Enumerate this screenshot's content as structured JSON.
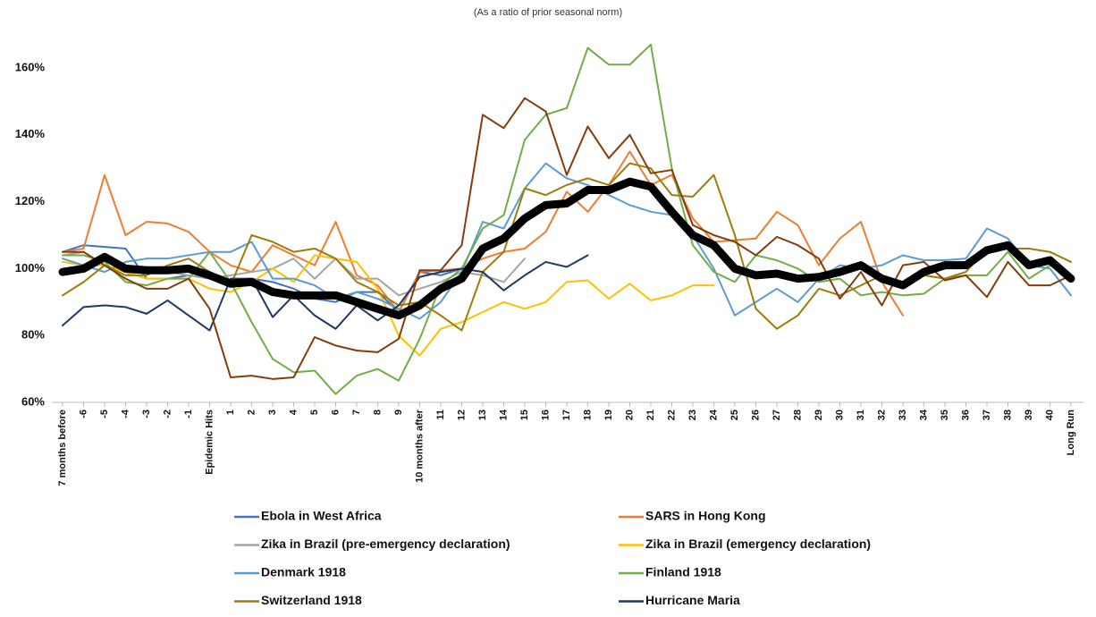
{
  "chart_data": {
    "type": "line",
    "subtitle": "(As a ratio of prior seasonal norm)",
    "categories": [
      "7 months before",
      "-6",
      "-5",
      "-4",
      "-3",
      "-2",
      "-1",
      "Epidemic Hits",
      "1",
      "2",
      "3",
      "4",
      "5",
      "6",
      "7",
      "8",
      "9",
      "10 months after",
      "11",
      "12",
      "13",
      "14",
      "15",
      "16",
      "17",
      "18",
      "19",
      "20",
      "21",
      "22",
      "23",
      "24",
      "25",
      "26",
      "27",
      "28",
      "29",
      "30",
      "31",
      "32",
      "33",
      "34",
      "35",
      "36",
      "37",
      "38",
      "39",
      "40",
      "Long Run"
    ],
    "ylim": [
      60,
      172
    ],
    "yticks": [
      {
        "value": 60,
        "label": "60%"
      },
      {
        "value": 80,
        "label": "80%"
      },
      {
        "value": 100,
        "label": "100%"
      },
      {
        "value": 120,
        "label": "120%"
      },
      {
        "value": 140,
        "label": "140%"
      },
      {
        "value": 160,
        "label": "160%"
      }
    ],
    "series": [
      {
        "name": "Ebola in West Africa",
        "color": "#4472c4",
        "width": 2,
        "values": [
          105,
          107,
          106.5,
          106,
          97,
          97,
          98,
          97,
          96,
          97,
          96,
          94,
          91,
          90,
          93,
          93,
          87,
          99,
          98,
          100,
          null,
          null,
          null,
          null,
          null,
          null,
          null,
          null,
          null,
          null,
          null,
          null,
          null,
          null,
          null,
          null,
          null,
          null,
          null,
          null,
          null,
          null,
          null,
          null,
          null,
          null,
          null,
          null,
          null
        ]
      },
      {
        "name": "SARS in Hong Kong",
        "color": "#ed7d31",
        "width": 2,
        "values": [
          105,
          106,
          128,
          110,
          114,
          113.5,
          111,
          105,
          101,
          99,
          107,
          104,
          101,
          114,
          98,
          95,
          87,
          99,
          99.5,
          100,
          103,
          105,
          106,
          111,
          123,
          117,
          125,
          135,
          125,
          128,
          115,
          108,
          108.5,
          109,
          117,
          113,
          101,
          109,
          114,
          96,
          86,
          null,
          null,
          null,
          null,
          null,
          null,
          null,
          null
        ]
      },
      {
        "name": "Zika in Brazil  (pre-emergency declaration)",
        "color": "#a5a5a5",
        "width": 2,
        "values": [
          104,
          105,
          101,
          98,
          100,
          99,
          98,
          97,
          98,
          99,
          100,
          103,
          97,
          103,
          97,
          97,
          92,
          94,
          96,
          99,
          98,
          96,
          103,
          null,
          null,
          null,
          null,
          null,
          null,
          null,
          null,
          null,
          null,
          null,
          null,
          null,
          null,
          null,
          null,
          null,
          null,
          null,
          null,
          null,
          null,
          null,
          null,
          null,
          null
        ]
      },
      {
        "name": "Zika in Brazil (emergency declaration)",
        "color": "#ffc000",
        "width": 2,
        "values": [
          102,
          101,
          101,
          99,
          97,
          97,
          97,
          94,
          93,
          96,
          100,
          96,
          104,
          103,
          102,
          94,
          80,
          74,
          82,
          84,
          87,
          90,
          88,
          90,
          96,
          96.5,
          91,
          95.5,
          90.5,
          92,
          95,
          95,
          null,
          null,
          null,
          null,
          null,
          null,
          null,
          null,
          null,
          null,
          null,
          null,
          null,
          null,
          null,
          null,
          null
        ]
      },
      {
        "name": "Denmark 1918",
        "color": "#5b9bd5",
        "width": 2,
        "values": [
          103,
          101,
          99,
          102,
          103,
          103,
          104,
          105,
          105,
          108,
          97,
          97,
          95,
          91,
          93,
          91,
          88,
          85,
          90,
          99,
          114,
          112,
          124,
          131.5,
          127,
          125,
          122,
          119,
          117,
          116,
          110,
          100,
          86,
          90,
          94,
          90,
          97,
          101,
          100,
          101,
          104,
          102.5,
          102.5,
          103,
          112,
          109,
          101,
          100,
          92
        ]
      },
      {
        "name": "Finland 1918",
        "color": "#70ad47",
        "width": 2,
        "values": [
          104,
          104,
          102,
          96,
          95,
          97,
          97,
          105,
          96,
          84,
          73,
          69,
          69.5,
          62.5,
          68,
          70,
          66.5,
          79,
          95,
          100,
          112,
          116,
          138.5,
          146,
          148,
          166,
          161,
          161,
          167,
          130,
          107,
          99,
          96,
          104,
          102.5,
          100,
          96,
          97,
          92,
          93,
          92,
          92.5,
          97,
          98,
          98,
          105,
          97,
          101,
          97
        ]
      },
      {
        "name": "Switzerland 1918",
        "color": "#9e7c0c",
        "width": 2,
        "values": [
          92,
          96,
          101,
          98,
          98,
          101,
          103,
          99,
          95,
          110,
          108,
          105,
          106,
          103,
          96,
          93,
          89,
          90,
          86,
          81.5,
          99,
          105,
          124,
          122,
          125,
          127,
          125,
          131.5,
          130,
          122,
          121.5,
          128,
          110,
          88,
          82,
          86,
          94,
          92,
          95,
          98,
          96,
          98,
          97,
          99,
          106,
          106,
          106,
          105,
          102
        ]
      },
      {
        "name": "Hurricane Maria",
        "color": "#203864",
        "width": 2,
        "values": [
          83,
          88.5,
          89,
          88.5,
          86.5,
          90.5,
          86,
          81.5,
          97,
          97,
          85.5,
          92,
          86,
          82,
          89,
          84.5,
          89,
          97.5,
          99,
          100,
          99,
          93.5,
          98,
          102,
          100.5,
          104,
          null,
          null,
          null,
          null,
          null,
          null,
          null,
          null,
          null,
          null,
          null,
          null,
          null,
          null,
          null,
          null,
          null,
          null,
          null,
          null,
          null,
          null,
          null
        ]
      },
      {
        "color": "#843c0c",
        "width": 2,
        "values": [
          105,
          105,
          101,
          97,
          94,
          94,
          97,
          88,
          67.5,
          68,
          67,
          67.5,
          79.5,
          77,
          75.5,
          75,
          79,
          99.5,
          99.5,
          107,
          146,
          142,
          151,
          147,
          128,
          142.5,
          133,
          140,
          128.5,
          129.5,
          113,
          110,
          108,
          104,
          109.5,
          107,
          103,
          91,
          99,
          89,
          101,
          102,
          96.5,
          98,
          91.5,
          102,
          95,
          95,
          98
        ]
      },
      {
        "color": "#000000",
        "width": 9,
        "values": [
          99,
          100,
          103.5,
          100,
          99.5,
          99.5,
          100,
          98,
          95.5,
          96,
          93,
          92,
          92,
          92,
          90,
          88,
          86,
          89,
          94,
          97,
          106,
          109,
          115,
          119,
          119.5,
          123.5,
          123.5,
          126,
          124.5,
          117,
          110,
          107,
          100,
          98,
          98.5,
          97,
          97.5,
          99,
          101,
          97,
          95,
          99,
          101,
          101,
          105.5,
          107,
          101,
          102.5,
          97
        ]
      }
    ]
  }
}
